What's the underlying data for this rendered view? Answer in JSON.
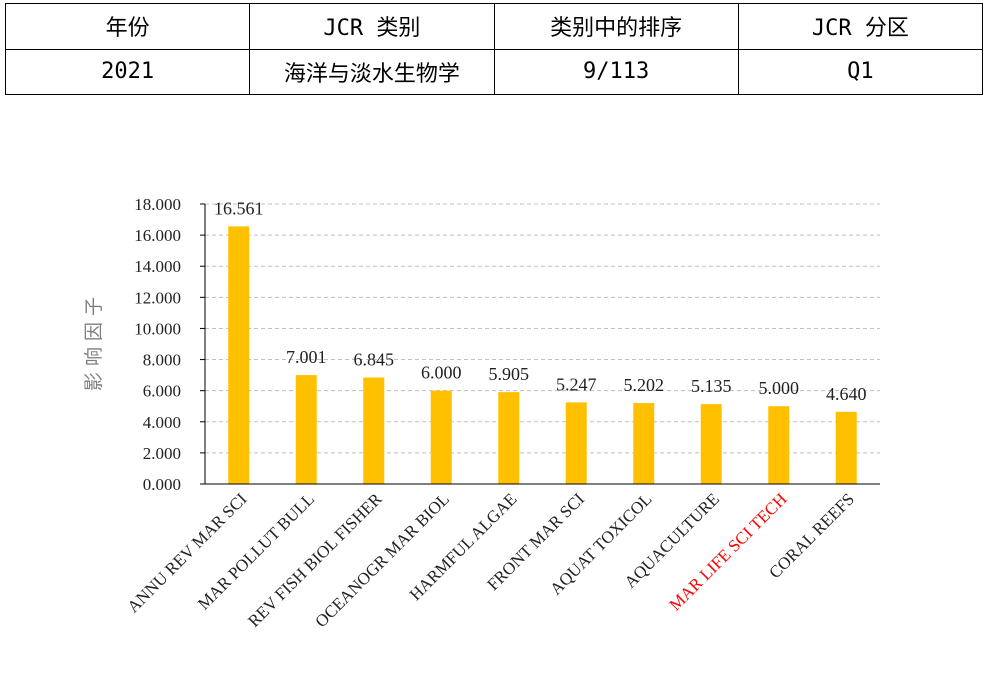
{
  "table": {
    "headers": [
      "年份",
      "JCR 类别",
      "类别中的排序",
      "JCR 分区"
    ],
    "row": [
      "2021",
      "海洋与淡水生物学",
      "9/113",
      "Q1"
    ]
  },
  "chart_data": {
    "type": "bar",
    "ylabel": "影 响 因 子",
    "ylim": [
      0,
      18
    ],
    "yticks": [
      "0.000",
      "2.000",
      "4.000",
      "6.000",
      "8.000",
      "10.000",
      "12.000",
      "14.000",
      "16.000",
      "18.000"
    ],
    "grid": true,
    "bar_color": "#FFC000",
    "highlight_color": "#FF0000",
    "categories": [
      "ANNU REV MAR SCI",
      "MAR POLLUT BULL",
      "REV FISH BIOL FISHER",
      "OCEANOGR MAR BIOL",
      "HARMFUL ALGAE",
      "FRONT MAR SCI",
      "AQUAT TOXICOL",
      "AQUACULTURE",
      "MAR LIFE SCI TECH",
      "CORAL REEFS"
    ],
    "values": [
      16.561,
      7.001,
      6.845,
      6.0,
      5.905,
      5.247,
      5.202,
      5.135,
      5.0,
      4.64
    ],
    "value_labels": [
      "16.561",
      "7.001",
      "6.845",
      "6.000",
      "5.905",
      "5.247",
      "5.202",
      "5.135",
      "5.000",
      "4.640"
    ],
    "highlighted": [
      "MAR LIFE SCI TECH"
    ]
  }
}
